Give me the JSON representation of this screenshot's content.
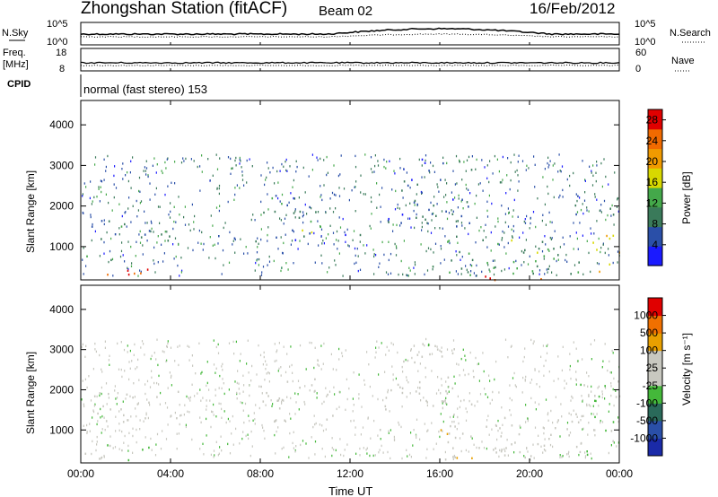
{
  "header": {
    "station_title": "Zhongshan Station (fitACF)",
    "beam_label": "Beam 02",
    "date_label": "16/Feb/2012"
  },
  "top_panels": {
    "nsky": {
      "left_label": "N.Sky",
      "left_ticks": [
        "10^5",
        "10^0"
      ],
      "right_label": "N.Search",
      "right_ticks": [
        "10^5",
        "10^0"
      ]
    },
    "freq": {
      "left_label_line1": "Freq.",
      "left_label_line2": "[MHz]",
      "left_ticks": [
        "18",
        "8"
      ],
      "right_label": "Nave",
      "right_ticks": [
        "60",
        "0"
      ]
    },
    "cpid": {
      "left_label": "CPID",
      "mode_text": "normal (fast stereo) 153"
    }
  },
  "colors": {
    "power_scale": [
      "#1a1aff",
      "#2a4fa8",
      "#3a7a5a",
      "#44a84a",
      "#d8d800",
      "#f09a00",
      "#f06a00",
      "#e00000"
    ],
    "velocity_scale": [
      "#e00000",
      "#f07000",
      "#e8a000",
      "#c8c8c0",
      "#c8c8c0",
      "#44b83a",
      "#2a6a5a",
      "#2a4fa8",
      "#1a2aa8"
    ]
  },
  "chart_data": [
    {
      "type": "heatmap",
      "panel": "power",
      "x_ticks": [
        "00:00",
        "04:00",
        "08:00",
        "12:00",
        "16:00",
        "20:00",
        "00:00"
      ],
      "y_ticks": [
        "1000",
        "2000",
        "3000",
        "4000"
      ],
      "ylabel": "Slant Range [km]",
      "xlim_hours": [
        0,
        24
      ],
      "ylim_km": [
        180,
        4600
      ],
      "colorbar": {
        "label": "Power [dB]",
        "ticks": [
          "4",
          "8",
          "12",
          "16",
          "20",
          "24",
          "28"
        ],
        "range": [
          0,
          30
        ]
      },
      "regions": [
        {
          "x": [
            0.0,
            3.2
          ],
          "y": [
            250,
            600
          ],
          "value": 26
        },
        {
          "x": [
            0.0,
            2.0
          ],
          "y": [
            600,
            800
          ],
          "value": 14
        },
        {
          "x": [
            0.3,
            4.0
          ],
          "y": [
            1300,
            1700
          ],
          "value": 8
        },
        {
          "x": [
            0.0,
            12.5
          ],
          "y": [
            1150,
            1350
          ],
          "value": 7
        },
        {
          "x": [
            8.0,
            10.5
          ],
          "y": [
            1400,
            2300
          ],
          "value": 9
        },
        {
          "x": [
            9.8,
            11.8
          ],
          "y": [
            1300,
            1700
          ],
          "value": 15
        },
        {
          "x": [
            13.5,
            17.5
          ],
          "y": [
            1500,
            3200
          ],
          "value": 6
        },
        {
          "x": [
            16.0,
            22.5
          ],
          "y": [
            250,
            1300
          ],
          "value": 12
        },
        {
          "x": [
            17.5,
            20.5
          ],
          "y": [
            200,
            450
          ],
          "value": 27
        },
        {
          "x": [
            22.5,
            24.0
          ],
          "y": [
            400,
            1300
          ],
          "value": 18
        },
        {
          "x": [
            22.0,
            24.0
          ],
          "y": [
            1800,
            2300
          ],
          "value": 7
        }
      ]
    },
    {
      "type": "heatmap",
      "panel": "velocity",
      "x_ticks": [
        "00:00",
        "04:00",
        "08:00",
        "12:00",
        "16:00",
        "20:00",
        "00:00"
      ],
      "y_ticks": [
        "1000",
        "2000",
        "3000",
        "4000"
      ],
      "xlabel": "Time UT",
      "ylabel": "Slant Range [km]",
      "xlim_hours": [
        0,
        24
      ],
      "ylim_km": [
        180,
        4600
      ],
      "colorbar": {
        "label": "Velocity [m s⁻¹]",
        "ticks": [
          "1000",
          "500",
          "100",
          "25",
          "-25",
          "-100",
          "-500",
          "-1000"
        ],
        "range": [
          -1200,
          1200
        ]
      },
      "regions": [
        {
          "x": [
            0.0,
            3.2
          ],
          "y": [
            250,
            700
          ],
          "value": 150
        },
        {
          "x": [
            0.3,
            4.5
          ],
          "y": [
            1200,
            2000
          ],
          "value": 0
        },
        {
          "x": [
            8.0,
            11.5
          ],
          "y": [
            1200,
            2300
          ],
          "value": 0
        },
        {
          "x": [
            13.5,
            17.5
          ],
          "y": [
            1500,
            3200
          ],
          "value": -80
        },
        {
          "x": [
            16.0,
            22.5
          ],
          "y": [
            250,
            1300
          ],
          "value": -60
        },
        {
          "x": [
            16.0,
            17.5
          ],
          "y": [
            300,
            1200
          ],
          "value": -400
        },
        {
          "x": [
            22.0,
            24.0
          ],
          "y": [
            300,
            2300
          ],
          "value": 120
        }
      ]
    }
  ]
}
